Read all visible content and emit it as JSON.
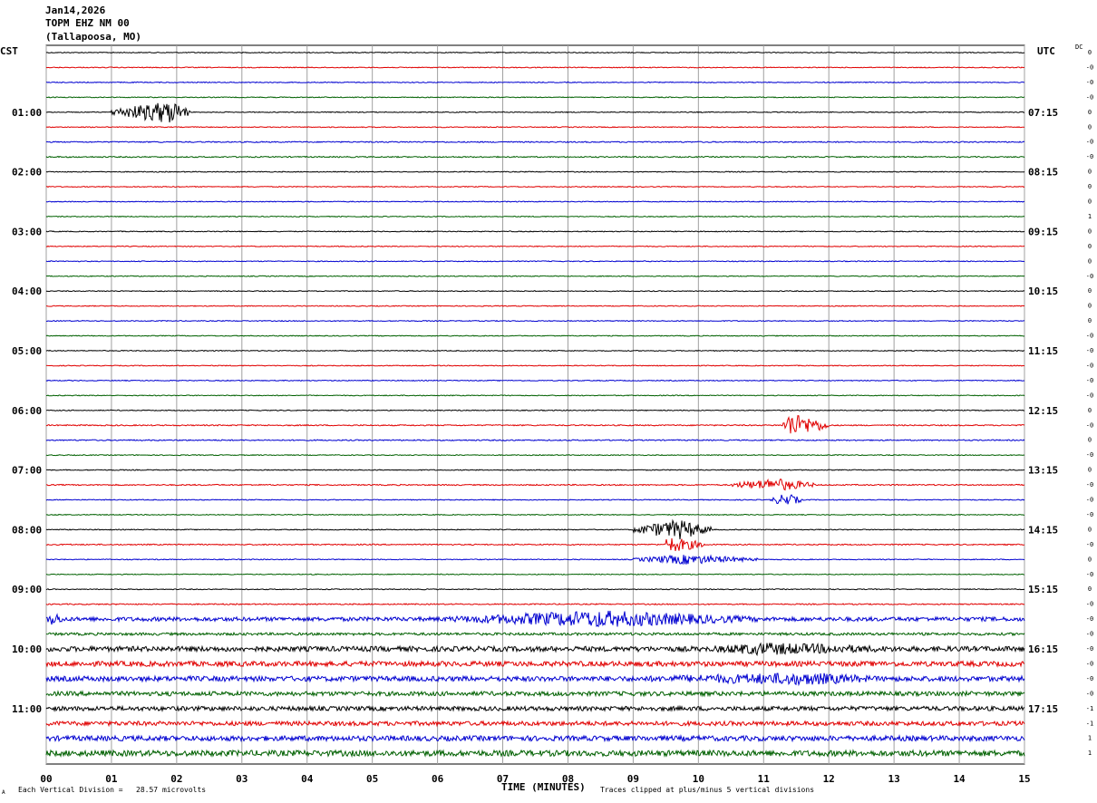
{
  "header": {
    "date": "Jan14,2026",
    "station": "TOPM EHZ NM 00",
    "location": "(Tallapoosa, MO)"
  },
  "left_axis_label": "CST",
  "right_axis_label": "UTC",
  "dc_label": "DC",
  "footer": {
    "scale": "Each Vertical Division =   28.57 microvolts",
    "clip": "Traces clipped at plus/minus 5 vertical divisions",
    "corner": "A"
  },
  "colors": {
    "trace_cycle": [
      "#000000",
      "#e00000",
      "#0000d0",
      "#006000"
    ],
    "grid": "#a0a0a0"
  },
  "chart_data": {
    "type": "line",
    "title": "",
    "xlabel": "TIME (MINUTES)",
    "x_ticks": [
      "00",
      "01",
      "02",
      "03",
      "04",
      "05",
      "06",
      "07",
      "08",
      "09",
      "10",
      "11",
      "12",
      "13",
      "14",
      "15"
    ],
    "xlim": [
      0,
      15
    ],
    "trace_count": 48,
    "trace_interval_minutes": 15,
    "left_time_labels": [
      {
        "trace": 4,
        "label": "01:00"
      },
      {
        "trace": 8,
        "label": "02:00"
      },
      {
        "trace": 12,
        "label": "03:00"
      },
      {
        "trace": 16,
        "label": "04:00"
      },
      {
        "trace": 20,
        "label": "05:00"
      },
      {
        "trace": 24,
        "label": "06:00"
      },
      {
        "trace": 28,
        "label": "07:00"
      },
      {
        "trace": 32,
        "label": "08:00"
      },
      {
        "trace": 36,
        "label": "09:00"
      },
      {
        "trace": 40,
        "label": "10:00"
      },
      {
        "trace": 44,
        "label": "11:00"
      }
    ],
    "right_time_labels": [
      {
        "trace": 4,
        "label": "07:15"
      },
      {
        "trace": 8,
        "label": "08:15"
      },
      {
        "trace": 12,
        "label": "09:15"
      },
      {
        "trace": 16,
        "label": "10:15"
      },
      {
        "trace": 20,
        "label": "11:15"
      },
      {
        "trace": 24,
        "label": "12:15"
      },
      {
        "trace": 28,
        "label": "13:15"
      },
      {
        "trace": 32,
        "label": "14:15"
      },
      {
        "trace": 36,
        "label": "15:15"
      },
      {
        "trace": 40,
        "label": "16:15"
      },
      {
        "trace": 44,
        "label": "17:15"
      }
    ],
    "dc_offsets": [
      "0",
      "-0",
      "-0",
      "-0",
      "0",
      "0",
      "-0",
      "-0",
      "0",
      "0",
      "0",
      "1",
      "0",
      "0",
      "0",
      "-0",
      "0",
      "0",
      "0",
      "-0",
      "-0",
      "-0",
      "-0",
      "-0",
      "0",
      "-0",
      "0",
      "-0",
      "0",
      "-0",
      "-0",
      "-0",
      "0",
      "-0",
      "0",
      "-0",
      "0",
      "-0",
      "-0",
      "-0",
      "-0",
      "-0",
      "-0",
      "-0",
      "-1",
      "-1",
      "1",
      "1"
    ],
    "events": [
      {
        "trace": 4,
        "start_min": 1.0,
        "end_min": 2.2,
        "peak_min": 1.9,
        "amplitude": 1.6
      },
      {
        "trace": 25,
        "start_min": 11.3,
        "end_min": 12.0,
        "peak_min": 11.4,
        "amplitude": 1.7
      },
      {
        "trace": 29,
        "start_min": 10.5,
        "end_min": 11.8,
        "peak_min": 11.2,
        "amplitude": 0.9
      },
      {
        "trace": 30,
        "start_min": 11.1,
        "end_min": 11.6,
        "peak_min": 11.35,
        "amplitude": 0.9
      },
      {
        "trace": 32,
        "start_min": 9.0,
        "end_min": 10.2,
        "peak_min": 9.7,
        "amplitude": 1.4
      },
      {
        "trace": 33,
        "start_min": 9.5,
        "end_min": 10.1,
        "peak_min": 9.5,
        "amplitude": 1.2
      },
      {
        "trace": 34,
        "start_min": 9.0,
        "end_min": 10.9,
        "peak_min": 9.8,
        "amplitude": 0.7
      },
      {
        "trace": 38,
        "start_min": 0.0,
        "end_min": 0.3,
        "peak_min": 0.1,
        "amplitude": 1.0
      },
      {
        "trace": 38,
        "start_min": 6.0,
        "end_min": 11.0,
        "peak_min": 8.5,
        "amplitude": 1.2
      },
      {
        "trace": 40,
        "start_min": 10.0,
        "end_min": 13.5,
        "peak_min": 11.0,
        "amplitude": 0.9
      },
      {
        "trace": 42,
        "start_min": 8.5,
        "end_min": 13.0,
        "peak_min": 11.7,
        "amplitude": 0.9
      }
    ],
    "noise_levels": [
      0.06,
      0.06,
      0.06,
      0.06,
      0.06,
      0.06,
      0.08,
      0.08,
      0.06,
      0.06,
      0.06,
      0.06,
      0.06,
      0.06,
      0.06,
      0.06,
      0.06,
      0.06,
      0.06,
      0.06,
      0.06,
      0.06,
      0.06,
      0.06,
      0.06,
      0.08,
      0.08,
      0.06,
      0.06,
      0.08,
      0.06,
      0.06,
      0.06,
      0.08,
      0.06,
      0.06,
      0.06,
      0.08,
      0.28,
      0.18,
      0.35,
      0.35,
      0.35,
      0.3,
      0.3,
      0.3,
      0.35,
      0.4
    ]
  }
}
